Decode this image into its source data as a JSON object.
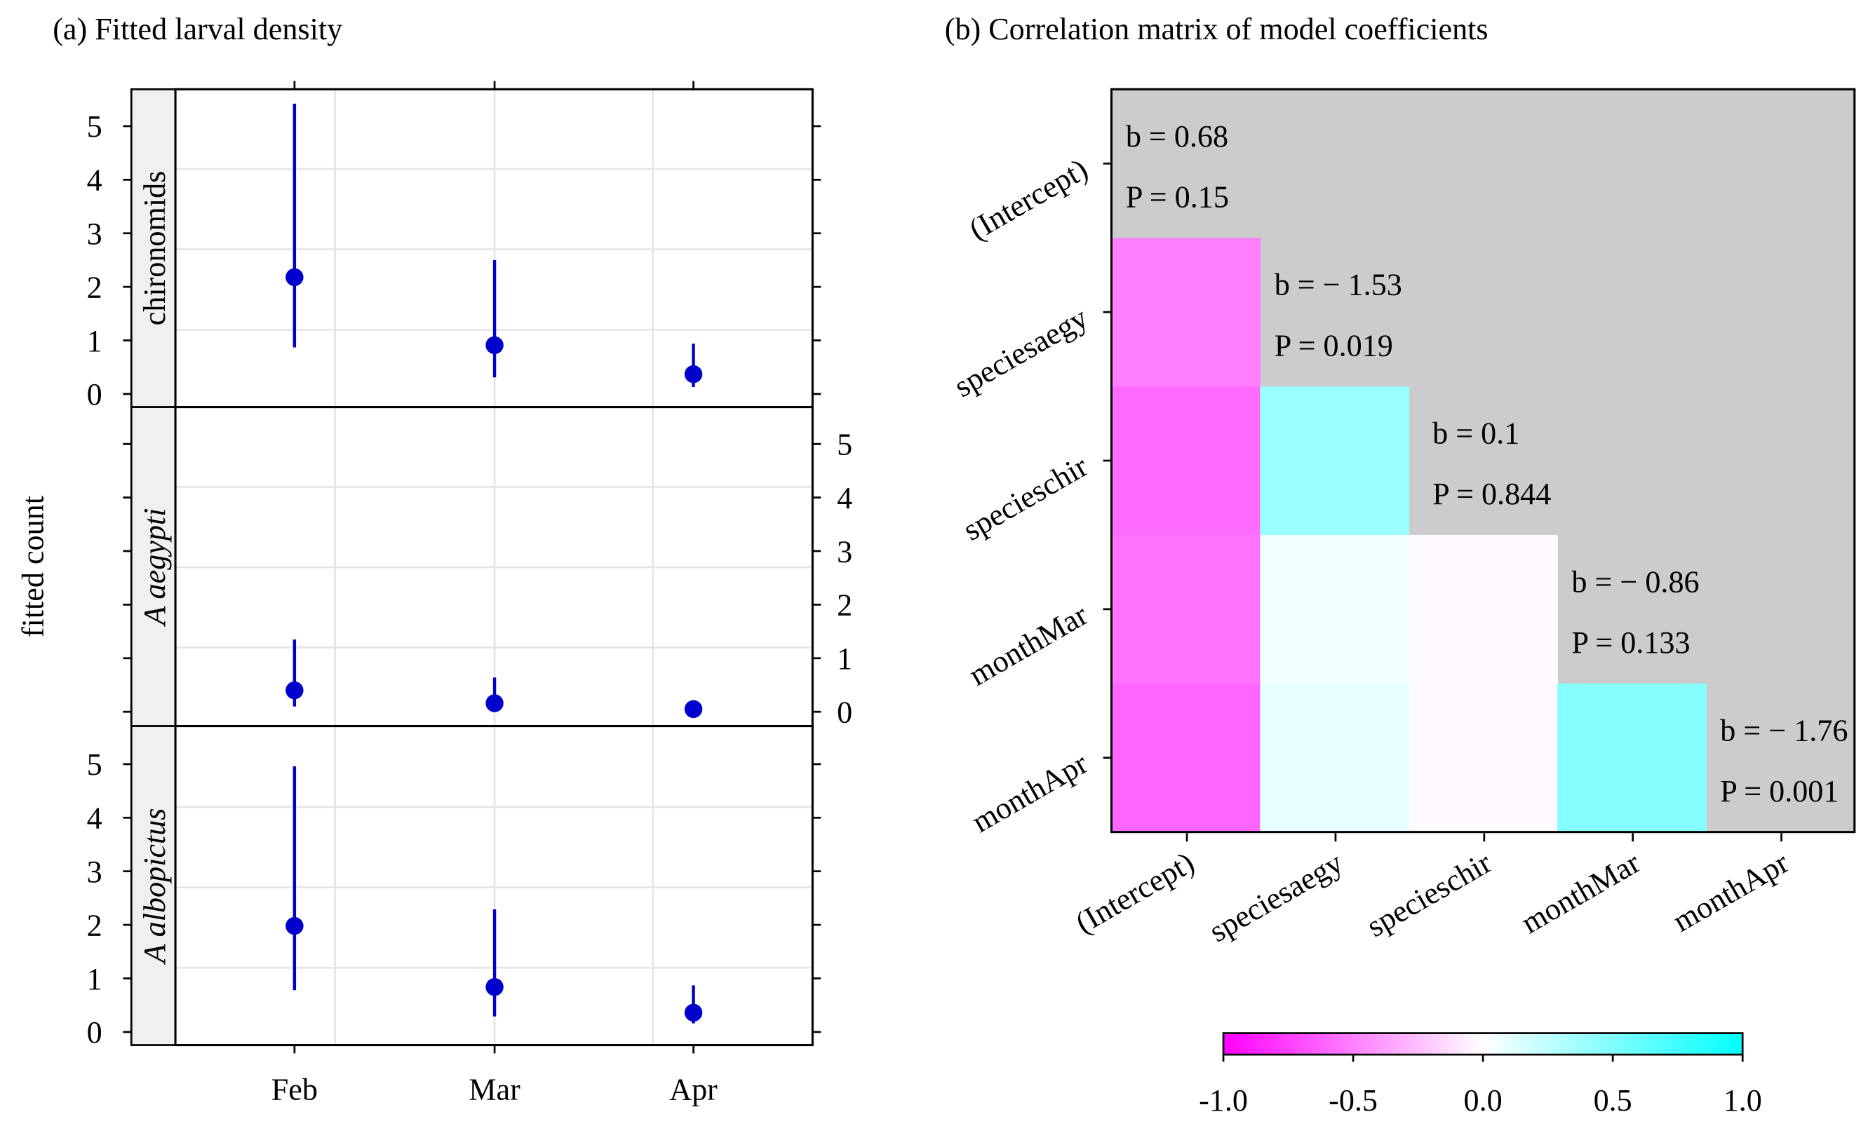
{
  "chart_data": [
    {
      "type": "scatter",
      "title": "(a) Fitted larval density",
      "ylabel": "fitted count",
      "xlabel": "",
      "categories": [
        "Feb",
        "Mar",
        "Apr"
      ],
      "ylim": [
        0,
        5
      ],
      "yticks": [
        "0",
        "1",
        "2",
        "3",
        "4",
        "5"
      ],
      "grid": true,
      "panels": [
        {
          "name": "chironomids",
          "italic": false,
          "points": [
            {
              "y": 2.18,
              "lo": 0.87,
              "hi": 5.42
            },
            {
              "y": 0.91,
              "lo": 0.31,
              "hi": 2.5
            },
            {
              "y": 0.37,
              "lo": 0.13,
              "hi": 0.94
            }
          ]
        },
        {
          "name": "A aegypti",
          "italic": true,
          "points": [
            {
              "y": 0.4,
              "lo": 0.1,
              "hi": 1.35
            },
            {
              "y": 0.16,
              "lo": 0.02,
              "hi": 0.64
            },
            {
              "y": 0.05,
              "lo": 0.0,
              "hi": 0.18
            }
          ]
        },
        {
          "name": "A albopictus",
          "italic": true,
          "points": [
            {
              "y": 1.98,
              "lo": 0.78,
              "hi": 4.96
            },
            {
              "y": 0.84,
              "lo": 0.29,
              "hi": 2.29
            },
            {
              "y": 0.36,
              "lo": 0.16,
              "hi": 0.87
            }
          ]
        }
      ],
      "point_color": "#0000cc"
    },
    {
      "type": "heatmap",
      "title": "(b) Correlation matrix of model coefficients",
      "labels": [
        "(Intercept)",
        "speciesaegy",
        "specieschir",
        "monthMar",
        "monthApr"
      ],
      "correlations": [
        [
          null,
          null,
          null,
          null,
          null
        ],
        [
          -0.5,
          null,
          null,
          null,
          null
        ],
        [
          -0.58,
          0.4,
          null,
          null,
          null
        ],
        [
          -0.55,
          0.06,
          -0.02,
          null,
          null
        ],
        [
          -0.6,
          0.1,
          -0.02,
          0.47,
          null
        ]
      ],
      "diagonal": [
        {
          "b": "b = 0.68",
          "p": "P = 0.15"
        },
        {
          "b": "b = − 1.53",
          "p": "P = 0.019"
        },
        {
          "b": "b = 0.1",
          "p": "P = 0.844"
        },
        {
          "b": "b = − 0.86",
          "p": "P = 0.133"
        },
        {
          "b": "b = − 1.76",
          "p": "P = 0.001"
        }
      ],
      "colorbar": {
        "range": [
          -1,
          1
        ],
        "ticks": [
          "-1.0",
          "-0.5",
          "0.0",
          "0.5",
          "1.0"
        ],
        "low_color": "#ff00ff",
        "mid_color": "#ffffff",
        "high_color": "#00ffff"
      },
      "upper_color": "#cccccc"
    }
  ]
}
